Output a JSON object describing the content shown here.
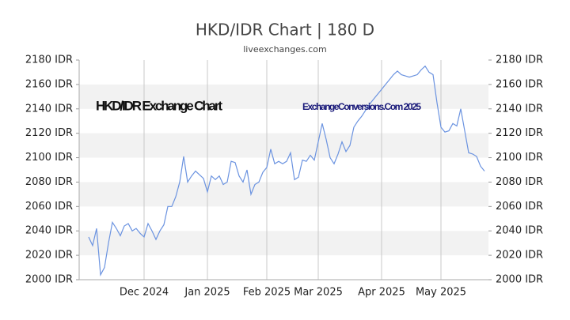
{
  "chart_data": {
    "type": "line",
    "title": "HKD/IDR Chart | 180 D",
    "subtitle": "liveexchanges.com",
    "annotations": [
      "HKD/IDR Exchange Chart",
      "ExchangeConversions.Com 2025"
    ],
    "categories": [
      null,
      null,
      null,
      null,
      null,
      null,
      null,
      null,
      null,
      null,
      null,
      null,
      null,
      null,
      "Dec 2024",
      null,
      null,
      null,
      null,
      null,
      null,
      null,
      null,
      null,
      null,
      null,
      null,
      null,
      null,
      null,
      "Jan 2025",
      null,
      null,
      null,
      null,
      null,
      null,
      null,
      null,
      null,
      null,
      null,
      null,
      null,
      null,
      "Feb 2025",
      null,
      null,
      null,
      null,
      null,
      null,
      null,
      null,
      null,
      null,
      null,
      null,
      "Mar 2025",
      null,
      null,
      null,
      null,
      null,
      null,
      null,
      null,
      null,
      null,
      null,
      null,
      null,
      null,
      null,
      "Apr 2025",
      null,
      null,
      null,
      null,
      null,
      null,
      null,
      null,
      null,
      null,
      null,
      null,
      null,
      null,
      "May 2025",
      null,
      null,
      null,
      null,
      null,
      null,
      null,
      null,
      null,
      null,
      null
    ],
    "values": [
      2035,
      2028,
      2042,
      2004,
      2010,
      2030,
      2047,
      2042,
      2036,
      2044,
      2046,
      2040,
      2042,
      2038,
      2035,
      2046,
      2040,
      2033,
      2040,
      2045,
      2060,
      2060,
      2068,
      2080,
      2101,
      2080,
      2085,
      2089,
      2086,
      2083,
      2072,
      2085,
      2082,
      2085,
      2078,
      2080,
      2097,
      2096,
      2085,
      2080,
      2090,
      2070,
      2078,
      2080,
      2088,
      2092,
      2107,
      2095,
      2097,
      2095,
      2097,
      2104,
      2082,
      2084,
      2098,
      2097,
      2102,
      2098,
      2113,
      2128,
      2115,
      2100,
      2095,
      2103,
      2113,
      2105,
      2110,
      2125,
      2130,
      2134,
      2139,
      2144,
      2148,
      2152,
      2156,
      2160,
      2164,
      2168,
      2171,
      2168,
      2167,
      2166,
      2167,
      2168,
      2172,
      2175,
      2170,
      2168,
      2145,
      2125,
      2121,
      2122,
      2128,
      2126,
      2140,
      2122,
      2104,
      2103,
      2101,
      2093,
      2089
    ],
    "color": "#6b93e0",
    "ylim": [
      2000,
      2180
    ],
    "yticks": [
      {
        "value": 2000,
        "label": "2000 IDR"
      },
      {
        "value": 2020,
        "label": "2020 IDR"
      },
      {
        "value": 2040,
        "label": "2040 IDR"
      },
      {
        "value": 2060,
        "label": "2060 IDR"
      },
      {
        "value": 2080,
        "label": "2080 IDR"
      },
      {
        "value": 2100,
        "label": "2100 IDR"
      },
      {
        "value": 2120,
        "label": "2120 IDR"
      },
      {
        "value": 2140,
        "label": "2140 IDR"
      },
      {
        "value": 2160,
        "label": "2160 IDR"
      },
      {
        "value": 2180,
        "label": "2180 IDR"
      }
    ],
    "grid": true
  }
}
